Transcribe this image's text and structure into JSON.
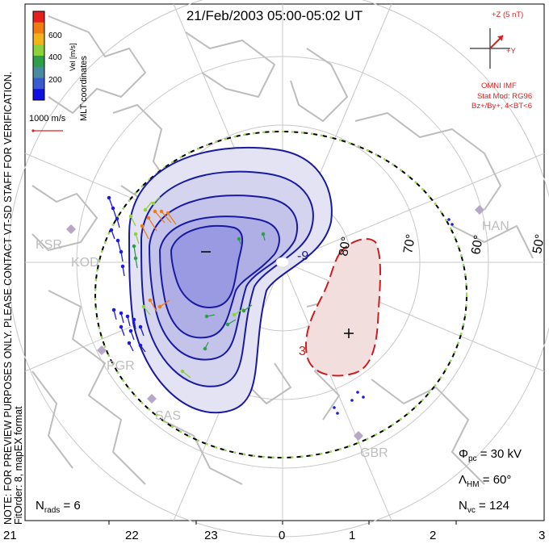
{
  "title": "21/Feb/2003 05:00-05:02 UT",
  "side_note": "NOTE: FOR PREVIEW PURPOSES ONLY. PLEASE CONTACT VT-SD STAFF FOR VERIFICATION.",
  "fit_info": "FitOrder: 8, mapEX format",
  "colorbar": {
    "label": "Vel [m/s]",
    "ticks": [
      "600",
      "400",
      "200"
    ],
    "colors": [
      "#e8201c",
      "#f07a14",
      "#f2b21a",
      "#8cd23a",
      "#2e9e4a",
      "#4a8a9e",
      "#3a5ad0",
      "#1010e0"
    ]
  },
  "coords_label": "MLT coordinates",
  "velocity_scale": "1000 m/s",
  "imf": {
    "z_label": "+Z (5 nT)",
    "y_label": "+Y",
    "source": "OMNI IMF",
    "stat_mod": "Stat Mod: RG96",
    "condition": "Bz+/By+, 4<BT<6"
  },
  "stats": {
    "phi_pc": "30 kV",
    "lambda_hm": "60°",
    "n_vc": "124",
    "n_rads": "6"
  },
  "lat_labels": [
    "80°",
    "70°",
    "60°",
    "50°"
  ],
  "bottom_axis": [
    "21",
    "22",
    "23",
    "0",
    "1",
    "2",
    "3"
  ],
  "stations": [
    "KSR",
    "KOD",
    "PGR",
    "SAS",
    "HAN",
    "GBR"
  ],
  "potential_labels": {
    "neg": "-9",
    "pos": "3"
  }
}
